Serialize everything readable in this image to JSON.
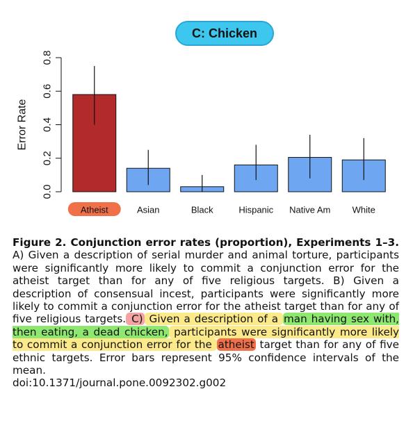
{
  "chart_data": {
    "type": "bar",
    "title": "C: Chicken",
    "ylabel": "Error Rate",
    "xlabel": "",
    "ylim": [
      0,
      0.8
    ],
    "yticks": [
      0.0,
      0.2,
      0.4,
      0.6,
      0.8
    ],
    "ytick_labels": [
      "0.0",
      "0.2",
      "0.4",
      "0.6",
      "0.8"
    ],
    "categories": [
      "Atheist",
      "Asian",
      "Black",
      "Hispanic",
      "Native Am",
      "White"
    ],
    "values": [
      0.58,
      0.14,
      0.03,
      0.16,
      0.205,
      0.19
    ],
    "error_low": [
      0.4,
      0.04,
      0.0,
      0.07,
      0.08,
      0.07
    ],
    "error_high": [
      0.75,
      0.25,
      0.1,
      0.28,
      0.34,
      0.32
    ],
    "colors": [
      "#b22a2a",
      "#6ea6f2",
      "#6ea6f2",
      "#6ea6f2",
      "#6ea6f2",
      "#6ea6f2"
    ],
    "highlight_category": "Atheist",
    "highlight_label_color": "#f0704a",
    "grid": false
  },
  "caption": {
    "lead": "Figure 2. Conjunction error rates (proportion), Experiments 1–3.",
    "part1": " A) Given a description of serial murder and animal torture, participants were significantly more likely to commit a conjunction error for the atheist target than for any of five religious targets. B) Given a description of consensual incest, participants were significantly more likely to commit a conjunction error for the atheist target than for any of five religious targets.",
    "c_marker": " C)",
    "yellow1": " Given a description of a ",
    "green": "man having sex with, then eating, a dead chicken,",
    "yellow2": " participants were significantly more likely to commit a conjunction error for the ",
    "atheist": "atheist",
    "part2": " target than for any of five ethnic targets. Error bars represent 95% confidence intervals of the mean.",
    "doi": "doi:10.1371/journal.pone.0092302.g002"
  },
  "colors": {
    "title_pill": "#3dc7ee",
    "bar_highlight": "#b22a2a",
    "bar_default": "#6ea6f2",
    "highlight_pink": "#f4a3a3",
    "highlight_yellow": "#fbe98a",
    "highlight_green": "#8ee86f",
    "highlight_red": "#f0704a"
  }
}
